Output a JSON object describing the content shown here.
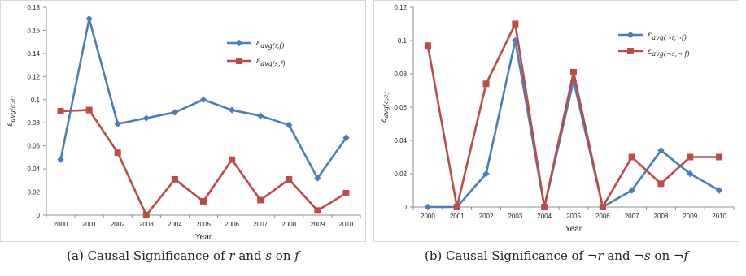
{
  "chart_data": [
    {
      "type": "line",
      "xlabel": "Year",
      "ylabel": "ε_avg(c,e)",
      "categories": [
        "2000",
        "2001",
        "2002",
        "2003",
        "2004",
        "2005",
        "2006",
        "2007",
        "2008",
        "2009",
        "2010"
      ],
      "ylim": [
        0,
        0.18
      ],
      "yticks": [
        0,
        0.02,
        0.04,
        0.06,
        0.08,
        0.1,
        0.12,
        0.14,
        0.16,
        0.18
      ],
      "legend_position": "top-right",
      "grid": false,
      "series": [
        {
          "name": "ε_avg(r,f)",
          "marker": "diamond",
          "color": "#4A7EBB",
          "values": [
            0.048,
            0.17,
            0.079,
            0.084,
            0.089,
            0.1,
            0.091,
            0.086,
            0.078,
            0.032,
            0.067
          ]
        },
        {
          "name": "ε_avg(s,f)",
          "marker": "square",
          "color": "#BE4B48",
          "values": [
            0.09,
            0.091,
            0.054,
            0.0,
            0.031,
            0.012,
            0.048,
            0.013,
            0.031,
            0.004,
            0.019
          ]
        }
      ],
      "caption": {
        "prefix": "(a) Causal Significance of ",
        "v1": "r",
        "mid": " and ",
        "v2": "s",
        "on": " on ",
        "v3": "f"
      }
    },
    {
      "type": "line",
      "xlabel": "Year",
      "ylabel": "ε_avg(c,e)",
      "categories": [
        "2000",
        "2001",
        "2002",
        "2003",
        "2004",
        "2005",
        "2006",
        "2007",
        "2008",
        "2009",
        "2010"
      ],
      "ylim": [
        0,
        0.12
      ],
      "yticks": [
        0,
        0.02,
        0.04,
        0.06,
        0.08,
        0.1,
        0.12
      ],
      "legend_position": "top-right",
      "grid": false,
      "series": [
        {
          "name": "ε_avg(¬r,¬f)",
          "marker": "diamond",
          "color": "#4A7EBB",
          "values": [
            0.0,
            0.0,
            0.02,
            0.1,
            0.0,
            0.076,
            0.0,
            0.01,
            0.034,
            0.02,
            0.01
          ]
        },
        {
          "name": "ε_avg(¬s,¬ f)",
          "marker": "square",
          "color": "#BE4B48",
          "values": [
            0.097,
            0.0,
            0.074,
            0.11,
            0.0,
            0.081,
            0.0,
            0.03,
            0.014,
            0.03,
            0.03
          ]
        }
      ],
      "caption": {
        "prefix": "(b) Causal Significance of ",
        "v1": "¬r",
        "mid": " and ",
        "v2": "¬s",
        "on": " on ",
        "v3": "¬f"
      }
    }
  ]
}
